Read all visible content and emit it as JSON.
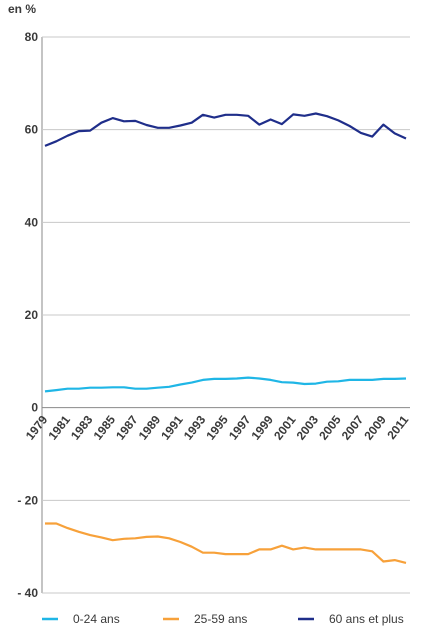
{
  "chart_data": {
    "type": "line",
    "unit_label": "en %",
    "title": "",
    "xlabel": "",
    "ylabel": "",
    "ylim": [
      -40,
      80
    ],
    "yticks": [
      {
        "value": 80,
        "label": "80"
      },
      {
        "value": 60,
        "label": "60"
      },
      {
        "value": 40,
        "label": "40"
      },
      {
        "value": 20,
        "label": "20"
      },
      {
        "value": 0,
        "label": "0"
      },
      {
        "value": -20,
        "label": "- 20"
      },
      {
        "value": -40,
        "label": "- 40"
      }
    ],
    "x": [
      1979,
      1980,
      1981,
      1982,
      1983,
      1984,
      1985,
      1986,
      1987,
      1988,
      1989,
      1990,
      1991,
      1992,
      1993,
      1994,
      1995,
      1996,
      1997,
      1998,
      1999,
      2000,
      2001,
      2002,
      2003,
      2004,
      2005,
      2006,
      2007,
      2008,
      2009,
      2010,
      2011
    ],
    "xtick_labels": [
      "1979",
      "1981",
      "1983",
      "1985",
      "1987",
      "1989",
      "1991",
      "1993",
      "1995",
      "1997",
      "1999",
      "2001",
      "2003",
      "2005",
      "2007",
      "2009",
      "2011"
    ],
    "grid": true,
    "legend_position": "bottom",
    "series": [
      {
        "name": "0-24 ans",
        "color": "#1fb6e6",
        "values": [
          3.5,
          3.8,
          4.1,
          4.1,
          4.3,
          4.3,
          4.4,
          4.4,
          4.1,
          4.1,
          4.3,
          4.5,
          5.0,
          5.4,
          6.0,
          6.2,
          6.2,
          6.3,
          6.5,
          6.3,
          6.0,
          5.5,
          5.4,
          5.1,
          5.2,
          5.6,
          5.7,
          6.0,
          6.0,
          6.0,
          6.2,
          6.2,
          6.3
        ]
      },
      {
        "name": "25-59 ans",
        "color": "#f7a13a",
        "values": [
          -25.0,
          -25.0,
          -26.0,
          -26.8,
          -27.5,
          -28.0,
          -28.6,
          -28.3,
          -28.2,
          -27.9,
          -27.8,
          -28.2,
          -29.0,
          -30.0,
          -31.3,
          -31.3,
          -31.6,
          -31.6,
          -31.6,
          -30.6,
          -30.6,
          -29.8,
          -30.6,
          -30.2,
          -30.6,
          -30.6,
          -30.6,
          -30.6,
          -30.6,
          -31.0,
          -33.2,
          -32.9,
          -33.5
        ]
      },
      {
        "name": "60 ans et plus",
        "color": "#1f2e8a",
        "values": [
          56.5,
          57.5,
          58.7,
          59.7,
          59.8,
          61.5,
          62.5,
          61.8,
          61.9,
          61.0,
          60.4,
          60.4,
          60.9,
          61.5,
          63.2,
          62.6,
          63.2,
          63.2,
          63.0,
          61.1,
          62.2,
          61.2,
          63.3,
          63.0,
          63.5,
          62.9,
          62.0,
          60.8,
          59.3,
          58.5,
          61.1,
          59.2,
          58.1
        ]
      }
    ]
  }
}
